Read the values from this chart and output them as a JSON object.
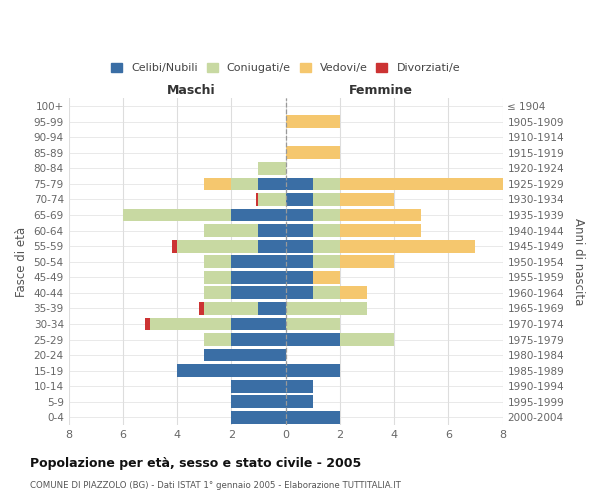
{
  "age_groups": [
    "0-4",
    "5-9",
    "10-14",
    "15-19",
    "20-24",
    "25-29",
    "30-34",
    "35-39",
    "40-44",
    "45-49",
    "50-54",
    "55-59",
    "60-64",
    "65-69",
    "70-74",
    "75-79",
    "80-84",
    "85-89",
    "90-94",
    "95-99",
    "100+"
  ],
  "birth_years": [
    "2000-2004",
    "1995-1999",
    "1990-1994",
    "1985-1989",
    "1980-1984",
    "1975-1979",
    "1970-1974",
    "1965-1969",
    "1960-1964",
    "1955-1959",
    "1950-1954",
    "1945-1949",
    "1940-1944",
    "1935-1939",
    "1930-1934",
    "1925-1929",
    "1920-1924",
    "1915-1919",
    "1910-1914",
    "1905-1909",
    "≤ 1904"
  ],
  "maschi_celibi": [
    2,
    2,
    2,
    4,
    3,
    2,
    2,
    1,
    2,
    2,
    2,
    1,
    1,
    2,
    0,
    1,
    0,
    0,
    0,
    0,
    0
  ],
  "maschi_coniugati": [
    0,
    0,
    0,
    0,
    0,
    1,
    3,
    2,
    1,
    1,
    1,
    3,
    2,
    4,
    1,
    1,
    1,
    0,
    0,
    0,
    0
  ],
  "maschi_vedovi": [
    0,
    0,
    0,
    0,
    0,
    0,
    0,
    0,
    0,
    0,
    0,
    0,
    0,
    0,
    0,
    1,
    0,
    0,
    0,
    0,
    0
  ],
  "maschi_divorziati": [
    0,
    0,
    0,
    0,
    0,
    0,
    0.2,
    0.2,
    0,
    0,
    0,
    0.2,
    0,
    0,
    0.1,
    0,
    0,
    0,
    0,
    0,
    0
  ],
  "femmine_nubili": [
    2,
    1,
    1,
    2,
    0,
    2,
    0,
    0,
    1,
    1,
    1,
    1,
    1,
    1,
    1,
    1,
    0,
    0,
    0,
    0,
    0
  ],
  "femmine_coniugate": [
    0,
    0,
    0,
    0,
    0,
    2,
    2,
    3,
    1,
    0,
    1,
    1,
    1,
    1,
    1,
    1,
    0,
    0,
    0,
    0,
    0
  ],
  "femmine_vedove": [
    0,
    0,
    0,
    0,
    0,
    0,
    0,
    0,
    1,
    1,
    2,
    5,
    3,
    3,
    2,
    6,
    0,
    2,
    0,
    2,
    0
  ],
  "femmine_divorziate": [
    0,
    0,
    0,
    0,
    0,
    0,
    0,
    0,
    0,
    0,
    0,
    0,
    0,
    0,
    0,
    0,
    0,
    0,
    0,
    0,
    0
  ],
  "color_celibi": "#3a6ea5",
  "color_coniugati": "#c8d9a2",
  "color_vedovi": "#f5c76e",
  "color_divorziati": "#cc3333",
  "xlim": [
    -8,
    8
  ],
  "xticks": [
    -8,
    -6,
    -4,
    -2,
    0,
    2,
    4,
    6,
    8
  ],
  "xticklabels": [
    "8",
    "6",
    "4",
    "2",
    "0",
    "2",
    "4",
    "6",
    "8"
  ],
  "title": "Popolazione per età, sesso e stato civile - 2005",
  "subtitle": "COMUNE DI PIAZZOLO (BG) - Dati ISTAT 1° gennaio 2005 - Elaborazione TUTTITALIA.IT",
  "ylabel_left": "Fasce di età",
  "ylabel_right": "Anni di nascita",
  "label_maschi": "Maschi",
  "label_femmine": "Femmine",
  "legend_labels": [
    "Celibi/Nubili",
    "Coniugati/e",
    "Vedovi/e",
    "Divorziati/e"
  ]
}
